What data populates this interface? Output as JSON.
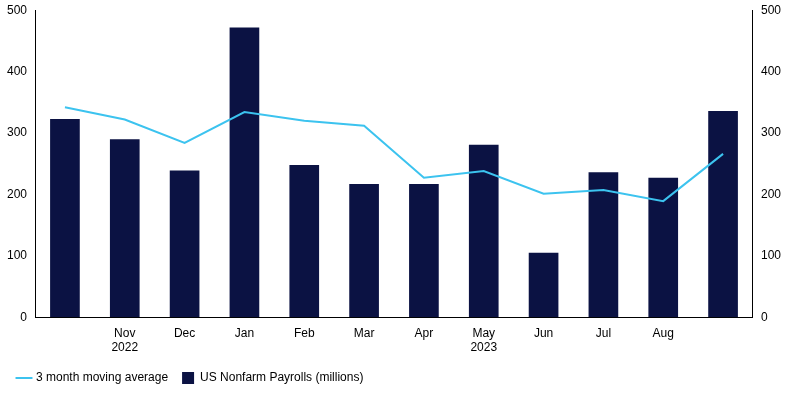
{
  "chart_data": {
    "type": "bar",
    "categories": [
      null,
      "Nov\n2022",
      "Dec",
      "Jan",
      "Feb",
      "Mar",
      "Apr",
      "May\n2023",
      "Jun",
      "Jul",
      "Aug",
      null
    ],
    "series": [
      {
        "name": "US Nonfarm Payrolls (millions)",
        "type": "bar",
        "color": "#0b1243",
        "values": [
          323,
          290,
          239,
          472,
          248,
          217,
          217,
          281,
          105,
          236,
          227,
          336
        ]
      },
      {
        "name": "3 month moving average",
        "type": "line",
        "color": "#3cc3ef",
        "axis": "y2",
        "values": [
          342,
          322,
          284,
          334,
          320,
          312,
          227,
          238,
          201,
          207,
          189,
          266
        ]
      }
    ],
    "ylim": [
      0,
      500
    ],
    "yticks": [
      0,
      100,
      200,
      300,
      400,
      500
    ],
    "y2lim": [
      0,
      500
    ],
    "y2ticks": [
      0,
      100,
      200,
      300,
      400,
      500
    ],
    "grid": false,
    "legend": "bottom"
  }
}
